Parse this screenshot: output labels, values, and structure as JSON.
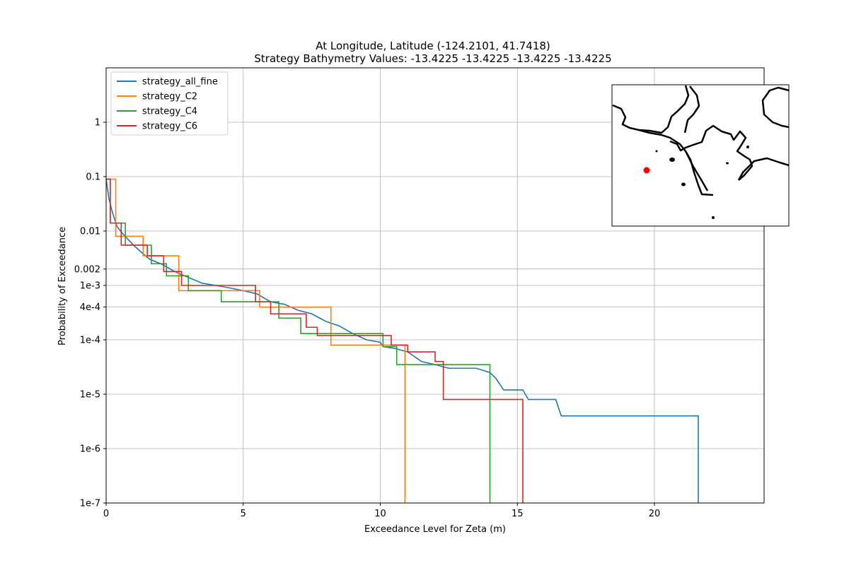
{
  "chart_data": {
    "type": "line",
    "title": "At Longitude, Latitude (-124.2101,  41.7418)",
    "subtitle": "Strategy Bathymetry Values:  -13.4225  -13.4225  -13.4225  -13.4225",
    "xlabel": "Exceedance Level for Zeta (m)",
    "ylabel": "Probability of Exceedance",
    "xlim": [
      0,
      24
    ],
    "ylim": [
      1e-07,
      10
    ],
    "yscale": "log",
    "grid": true,
    "legend_position": "upper-left",
    "xticks": [
      0,
      5,
      10,
      15,
      20
    ],
    "xtick_labels": [
      "0",
      "5",
      "10",
      "15",
      "20"
    ],
    "yticks": [
      1,
      0.1,
      0.01,
      0.002,
      0.001,
      0.0004,
      0.0001,
      1e-05,
      1e-06,
      1e-07
    ],
    "ytick_labels": [
      "1",
      "0.1",
      "0.01",
      "0.002",
      "1e-3",
      "4e-4",
      "1e-4",
      "1e-5",
      "1e-6",
      "1e-7"
    ],
    "series": [
      {
        "name": "strategy_all_fine",
        "color": "#1f77b4",
        "x": [
          0,
          0.1,
          0.2,
          0.3,
          0.4,
          0.6,
          0.8,
          1.0,
          1.3,
          1.6,
          2.0,
          2.5,
          3.0,
          3.5,
          4.0,
          4.5,
          5.0,
          5.5,
          6.0,
          6.5,
          7.0,
          7.5,
          8.0,
          8.5,
          9.0,
          9.5,
          10.0,
          10.1,
          10.5,
          11.0,
          11.5,
          12.0,
          12.5,
          13.0,
          13.5,
          14.0,
          14.2,
          14.5,
          15.2,
          15.4,
          16.4,
          16.6,
          21.6,
          21.6
        ],
        "y": [
          0.09,
          0.04,
          0.025,
          0.017,
          0.012,
          0.009,
          0.007,
          0.0055,
          0.004,
          0.003,
          0.0025,
          0.0018,
          0.0014,
          0.0011,
          0.001,
          0.0009,
          0.0008,
          0.0007,
          0.0005,
          0.00045,
          0.00035,
          0.0003,
          0.00022,
          0.00018,
          0.00013,
          0.0001,
          9e-05,
          7.5e-05,
          7e-05,
          6e-05,
          4e-05,
          3.5e-05,
          3e-05,
          3e-05,
          3e-05,
          2.5e-05,
          2e-05,
          1.2e-05,
          1.2e-05,
          8e-06,
          8e-06,
          4e-06,
          4e-06,
          1e-07
        ]
      },
      {
        "name": "strategy_C2",
        "color": "#ff7f0e",
        "x": [
          0,
          0.35,
          0.35,
          1.35,
          1.35,
          2.65,
          2.65,
          5.6,
          5.6,
          8.2,
          8.2,
          10.9,
          10.9
        ],
        "y": [
          0.09,
          0.09,
          0.008,
          0.008,
          0.0035,
          0.0035,
          0.0008,
          0.0008,
          0.0004,
          0.0004,
          8e-05,
          8e-05,
          1e-07
        ]
      },
      {
        "name": "strategy_C4",
        "color": "#2ca02c",
        "x": [
          0,
          0.15,
          0.15,
          0.7,
          0.7,
          1.65,
          1.65,
          2.2,
          2.2,
          3.0,
          3.0,
          4.2,
          4.2,
          6.3,
          6.3,
          7.1,
          7.1,
          10.1,
          10.1,
          10.6,
          10.6,
          14.0,
          14.0
        ],
        "y": [
          0.09,
          0.09,
          0.014,
          0.014,
          0.0055,
          0.0055,
          0.0025,
          0.0025,
          0.0015,
          0.0015,
          0.0008,
          0.0008,
          0.0005,
          0.0005,
          0.00025,
          0.00025,
          0.00013,
          0.00013,
          7.5e-05,
          7.5e-05,
          3.5e-05,
          3.5e-05,
          1e-07
        ]
      },
      {
        "name": "strategy_C6",
        "color": "#d62728",
        "x": [
          0,
          0.15,
          0.15,
          0.55,
          0.55,
          1.5,
          1.5,
          2.1,
          2.1,
          2.75,
          2.75,
          3.15,
          3.15,
          5.45,
          5.45,
          6.0,
          6.0,
          7.3,
          7.3,
          7.7,
          7.7,
          10.4,
          10.4,
          11.0,
          11.0,
          12.0,
          12.0,
          12.3,
          12.3,
          15.2,
          15.2
        ],
        "y": [
          0.09,
          0.09,
          0.014,
          0.014,
          0.0055,
          0.0055,
          0.0035,
          0.0035,
          0.0018,
          0.0018,
          0.001,
          0.001,
          0.001,
          0.001,
          0.0005,
          0.0005,
          0.0003,
          0.0003,
          0.00017,
          0.00017,
          0.00012,
          0.00012,
          8e-05,
          8e-05,
          6e-05,
          6e-05,
          4e-05,
          4e-05,
          8e-06,
          8e-06,
          1e-07
        ]
      }
    ],
    "inset_map": {
      "marker_color": "#ff0000",
      "coastline_color": "#000000"
    }
  }
}
